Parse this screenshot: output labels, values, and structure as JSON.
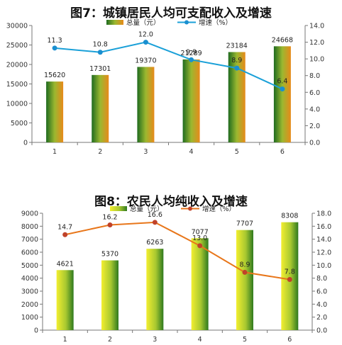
{
  "chart_data": [
    {
      "type": "bar",
      "title": "图7：城镇居民人均可支配收入及增速",
      "categories": [
        "1",
        "2",
        "3",
        "4",
        "5",
        "6"
      ],
      "series": [
        {
          "name": "总量（元）",
          "type": "bar",
          "axis": "left",
          "values": [
            15620,
            17301,
            19370,
            21289,
            23184,
            24668
          ]
        },
        {
          "name": "增速（%）",
          "type": "line",
          "axis": "right",
          "values": [
            11.3,
            10.8,
            12.0,
            9.9,
            8.9,
            6.4
          ]
        }
      ],
      "ylim": [
        0,
        30000
      ],
      "y2lim": [
        0,
        14
      ],
      "yticks": [
        "0",
        "5000",
        "10000",
        "15000",
        "20000",
        "25000",
        "30000"
      ],
      "y2ticks": [
        "0.0",
        "2.0",
        "4.0",
        "6.0",
        "8.0",
        "10.0",
        "12.0",
        "14.0"
      ],
      "legend_position": "top",
      "colors": {
        "bar_light": "#e88a1a",
        "bar_dark": "#1f6b1f",
        "line": "#1aa0d8",
        "marker": "#1a8fd0"
      }
    },
    {
      "type": "bar",
      "title": "图8：农民人均纯收入及增速",
      "categories": [
        "1",
        "2",
        "3",
        "4",
        "5",
        "6"
      ],
      "series": [
        {
          "name": "总量（元）",
          "type": "bar",
          "axis": "left",
          "values": [
            4621,
            5370,
            6263,
            7077,
            7707,
            8308
          ]
        },
        {
          "name": "增速（%）",
          "type": "line",
          "axis": "right",
          "values": [
            14.7,
            16.2,
            16.6,
            13.0,
            8.9,
            7.8
          ]
        }
      ],
      "ylim": [
        0,
        9000
      ],
      "y2lim": [
        0,
        18
      ],
      "yticks": [
        "0",
        "1000",
        "2000",
        "3000",
        "4000",
        "5000",
        "6000",
        "7000",
        "8000",
        "9000"
      ],
      "y2ticks": [
        "0.0",
        "2.0",
        "4.0",
        "6.0",
        "8.0",
        "10.0",
        "12.0",
        "14.0",
        "16.0",
        "18.0"
      ],
      "legend_position": "top",
      "colors": {
        "bar_light": "#f2ee30",
        "bar_dark": "#2f7a1f",
        "line": "#e8761a",
        "marker": "#c0432a"
      }
    }
  ]
}
